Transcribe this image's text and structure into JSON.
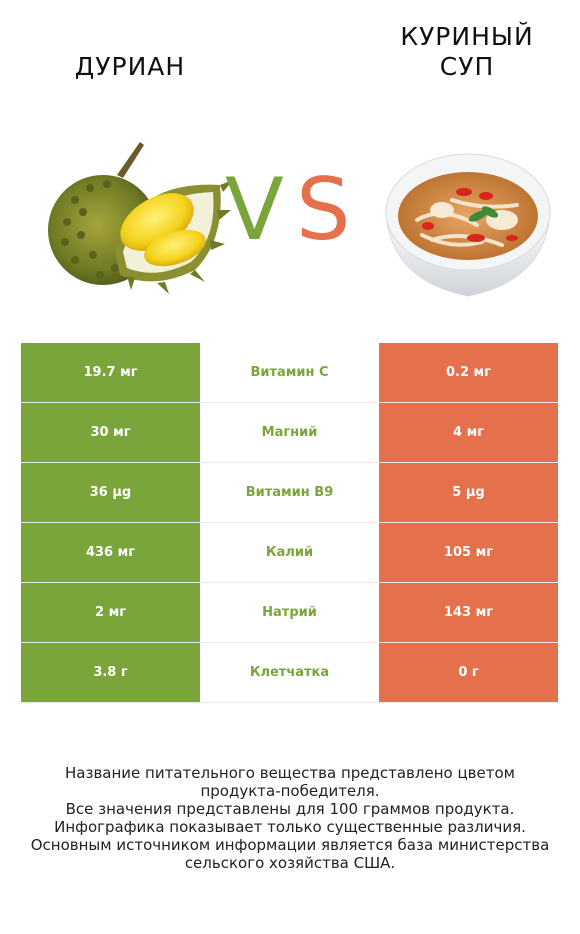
{
  "header": {
    "left_title": "ДУРИАН",
    "right_title_line1": "КУРИНЫЙ",
    "right_title_line2": "СУП",
    "vs_v": "V",
    "vs_s": "S"
  },
  "colors": {
    "winner_left": "#7aa53a",
    "winner_right": "#e5714c"
  },
  "rows": [
    {
      "left": "19.7 мг",
      "nutrient": "Витамин C",
      "right": "0.2 мг"
    },
    {
      "left": "30 мг",
      "nutrient": "Магний",
      "right": "4 мг"
    },
    {
      "left": "36 µg",
      "nutrient": "Витамин B9",
      "right": "5 µg"
    },
    {
      "left": "436 мг",
      "nutrient": "Калий",
      "right": "105 мг"
    },
    {
      "left": "2 мг",
      "nutrient": "Натрий",
      "right": "143 мг"
    },
    {
      "left": "3.8 г",
      "nutrient": "Клетчатка",
      "right": "0 г"
    }
  ],
  "footer": {
    "line1": "Название питательного вещества представлено цветом",
    "line2": "продукта-победителя.",
    "line3": "Все значения представлены для 100 граммов продукта.",
    "line4": "Инфографика показывает только существенные различия.",
    "line5": "Основным источником информации является база министерства",
    "line6": "сельского хозяйства США."
  }
}
